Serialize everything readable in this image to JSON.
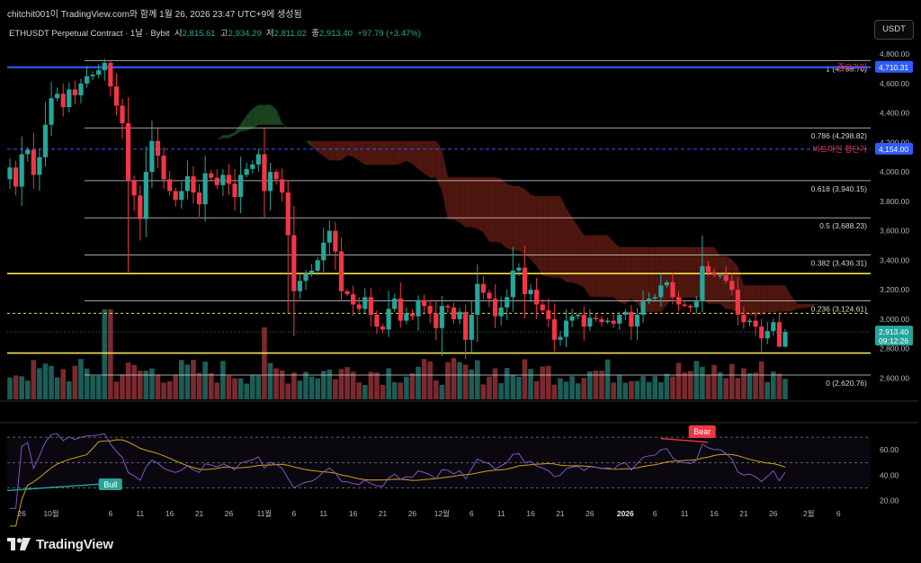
{
  "header": {
    "caption": "chitchit001이 TradingView.com와 함께 1월 26, 2026 23:47 UTC+9에 생성됨"
  },
  "symbol_line": {
    "title": "ETHUSDT Perpetual Contract · 1날 · Bybit",
    "o_label": "시",
    "o": "2,815.61",
    "h_label": "고",
    "h": "2,934.29",
    "l_label": "저",
    "l": "2,811.02",
    "c_label": "종",
    "c": "2,913.40",
    "change": "+97.79 (+3.47%)"
  },
  "currency_button": "USDT",
  "brand": "TradingView",
  "colors": {
    "up": "#26a69a",
    "down": "#f23645",
    "background": "#000000",
    "resistance_yellow": "#f5e04a",
    "key_line_blue": "#2f5bff",
    "cloud_bull": "#1f4d23",
    "cloud_bear": "#5b1a12",
    "rsi_line": "#7e57c2",
    "rsi_ma": "#d4a017"
  },
  "chart_data": [
    {
      "type": "candlestick",
      "series_name": "ETHUSDT",
      "ylim": [
        2450,
        4880
      ],
      "ytick_labels": [
        "2,600.00",
        "2,800.00",
        "3,000.00",
        "3,200.00",
        "3,400.00",
        "3,600.00",
        "3,800.00",
        "4,000.00",
        "4,200.00",
        "4,400.00",
        "4,600.00",
        "4,800.00"
      ],
      "yticks": [
        2600,
        2800,
        3000,
        3200,
        3400,
        3600,
        3800,
        4000,
        4200,
        4400,
        4600,
        4800
      ],
      "x_labels": [
        {
          "label": "26",
          "i": 2
        },
        {
          "label": "10월",
          "i": 7
        },
        {
          "label": "6",
          "i": 17
        },
        {
          "label": "11",
          "i": 22
        },
        {
          "label": "16",
          "i": 27
        },
        {
          "label": "21",
          "i": 32
        },
        {
          "label": "26",
          "i": 37
        },
        {
          "label": "11월",
          "i": 43
        },
        {
          "label": "6",
          "i": 48
        },
        {
          "label": "11",
          "i": 53
        },
        {
          "label": "16",
          "i": 58
        },
        {
          "label": "21",
          "i": 63
        },
        {
          "label": "26",
          "i": 68
        },
        {
          "label": "12월",
          "i": 73
        },
        {
          "label": "6",
          "i": 78
        },
        {
          "label": "11",
          "i": 83
        },
        {
          "label": "16",
          "i": 88
        },
        {
          "label": "21",
          "i": 93
        },
        {
          "label": "26",
          "i": 98
        },
        {
          "label": "2026",
          "i": 104
        },
        {
          "label": "6",
          "i": 109
        },
        {
          "label": "11",
          "i": 114
        },
        {
          "label": "16",
          "i": 119
        },
        {
          "label": "21",
          "i": 124
        },
        {
          "label": "26",
          "i": 129
        },
        {
          "label": "2월",
          "i": 135
        },
        {
          "label": "6",
          "i": 140
        }
      ],
      "closes": [
        4030,
        3900,
        4120,
        4150,
        3980,
        4100,
        4320,
        4500,
        4530,
        4440,
        4560,
        4520,
        4600,
        4650,
        4660,
        4690,
        4740,
        4580,
        4450,
        4330,
        3940,
        3840,
        3680,
        4000,
        4210,
        4110,
        3950,
        3870,
        3810,
        3870,
        3970,
        3860,
        3780,
        3990,
        3960,
        3910,
        3980,
        3920,
        3830,
        3980,
        4020,
        4050,
        4120,
        3870,
        4000,
        3950,
        3860,
        3570,
        3190,
        3260,
        3310,
        3330,
        3400,
        3520,
        3600,
        3460,
        3190,
        3170,
        3100,
        3070,
        3150,
        3030,
        2950,
        2930,
        3070,
        3140,
        2990,
        3040,
        3020,
        3130,
        3090,
        3040,
        2940,
        3090,
        3080,
        3000,
        3050,
        2860,
        3030,
        3240,
        3180,
        3140,
        3020,
        3080,
        3150,
        3330,
        3350,
        3170,
        3200,
        3100,
        3060,
        3000,
        2860,
        2880,
        2990,
        3020,
        3030,
        2950,
        3010,
        3000,
        2980,
        2990,
        2970,
        3030,
        3050,
        2950,
        3030,
        3120,
        3140,
        3150,
        3230,
        3250,
        3150,
        3100,
        3090,
        3080,
        3120,
        3360,
        3320,
        3300,
        3300,
        3260,
        3200,
        3030,
        2980,
        2990,
        2950,
        2870,
        2920,
        2980,
        2813,
        2913
      ],
      "key_levels": [
        {
          "label": "중요라인",
          "price": 4710.31,
          "price_label": "4,710.31",
          "color": "#2f5bff",
          "style": "solid"
        },
        {
          "label": "비트마인 평단가",
          "price": 4154.0,
          "price_label": "4,154.00",
          "color": "#2f5bff",
          "style": "dashed"
        },
        {
          "label": "",
          "price": 2913.4,
          "price_label": "2,913.40",
          "sub_label": "09:12:26",
          "color": "#26a69a",
          "style": "last"
        }
      ],
      "fibonacci": [
        {
          "label": "1 (4,755.70)",
          "price": 4755.7
        },
        {
          "label": "0.786 (4,298.82)",
          "price": 4298.82
        },
        {
          "label": "0.618 (3,940.15)",
          "price": 3940.15
        },
        {
          "label": "0.5 (3,688.23)",
          "price": 3688.23
        },
        {
          "label": "0.382 (3,436.31)",
          "price": 3436.31
        },
        {
          "label": "0.236 (3,124.61)",
          "price": 3124.61
        },
        {
          "label": "0 (2,620.76)",
          "price": 2620.76
        }
      ],
      "horizontal_lines": [
        {
          "price": 3310,
          "color": "#f5e04a",
          "style": "solid"
        },
        {
          "price": 2770,
          "color": "#f5e04a",
          "style": "solid"
        },
        {
          "price": 3040,
          "color": "#f5e04a",
          "style": "dashed"
        }
      ]
    },
    {
      "type": "line",
      "series_name": "RSI",
      "ylim": [
        12,
        80
      ],
      "ytick_labels": [
        "20.00",
        "40.00",
        "60.00"
      ],
      "yticks": [
        20,
        40,
        60
      ],
      "bands": [
        70,
        50,
        30
      ],
      "annotations": [
        {
          "label": "Bear",
          "color": "#f23645"
        },
        {
          "label": "Bull",
          "color": "#26a69a"
        }
      ]
    }
  ]
}
